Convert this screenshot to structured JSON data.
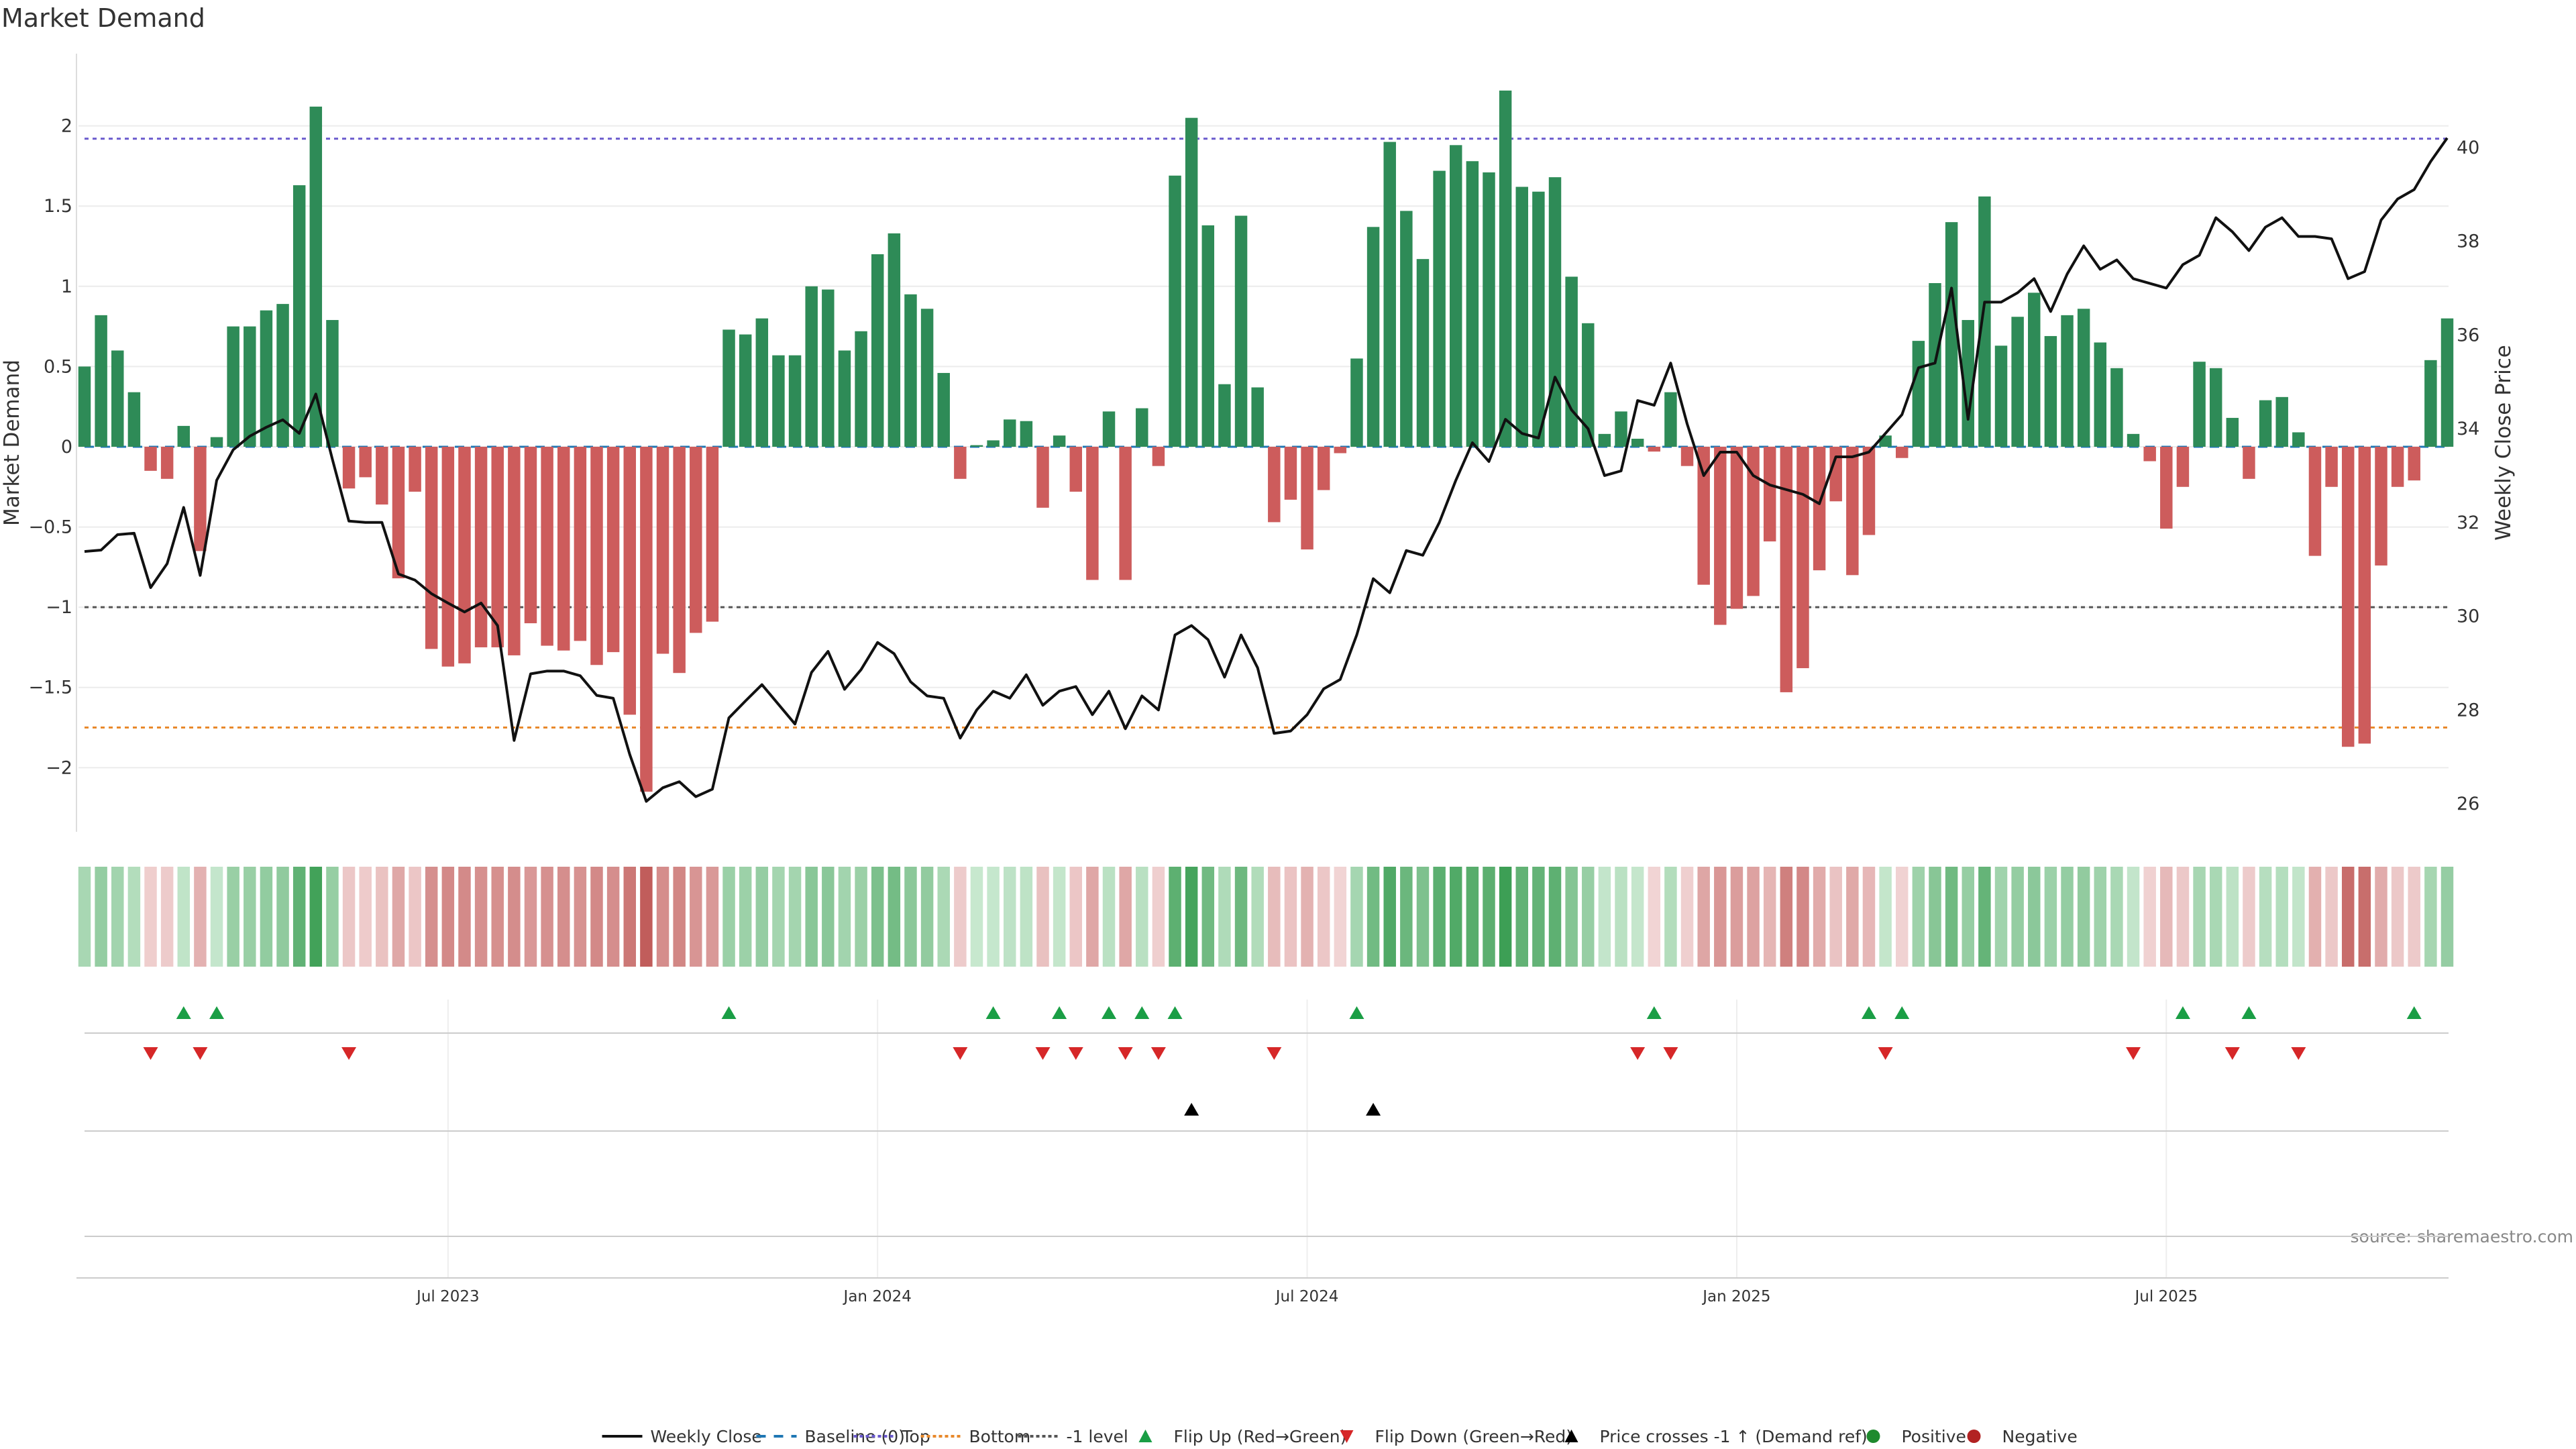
{
  "chart_data": {
    "type": "bar",
    "title": "Market Demand",
    "ylabel": "Market Demand",
    "y2label": "Weekly Close Price",
    "ylim": [
      -2.4,
      2.45
    ],
    "y2lim": [
      25.4,
      42.0
    ],
    "yticks": [
      2,
      1.5,
      1,
      0.5,
      0,
      -0.5,
      -1,
      -1.5,
      -2
    ],
    "ytick_labels": [
      "2",
      "1.5",
      "1",
      "0.5",
      "0",
      "−0.5",
      "−1",
      "−1.5",
      "−2"
    ],
    "y2ticks": [
      40,
      38,
      36,
      34,
      32,
      30,
      28,
      26
    ],
    "levels": {
      "top": 1.92,
      "bottom": -1.75,
      "minus_one": -1,
      "baseline": 0
    },
    "xticks": [
      {
        "week": 22,
        "label": "Jul 2023"
      },
      {
        "week": 48,
        "label": "Jan 2024"
      },
      {
        "week": 74,
        "label": "Jul 2024"
      },
      {
        "week": 100,
        "label": "Jan 2025"
      },
      {
        "week": 126,
        "label": "Jul 2025"
      }
    ],
    "demand": [
      0.5,
      0.82,
      0.6,
      0.34,
      -0.15,
      -0.2,
      0.13,
      -0.65,
      0.06,
      0.75,
      0.75,
      0.85,
      0.89,
      1.63,
      2.12,
      0.79,
      -0.26,
      -0.19,
      -0.36,
      -0.82,
      -0.28,
      -1.26,
      -1.37,
      -1.35,
      -1.25,
      -1.25,
      -1.3,
      -1.1,
      -1.24,
      -1.27,
      -1.21,
      -1.36,
      -1.28,
      -1.67,
      -2.15,
      -1.29,
      -1.41,
      -1.16,
      -1.09,
      0.73,
      0.7,
      0.8,
      0.57,
      0.57,
      1.0,
      0.98,
      0.6,
      0.72,
      1.2,
      1.33,
      0.95,
      0.86,
      0.46,
      -0.2,
      0.01,
      0.04,
      0.17,
      0.16,
      -0.38,
      0.07,
      -0.28,
      -0.83,
      0.22,
      -0.83,
      0.24,
      -0.12,
      1.69,
      2.05,
      1.38,
      0.39,
      1.44,
      0.37,
      -0.47,
      -0.33,
      -0.64,
      -0.27,
      -0.04,
      0.55,
      1.37,
      1.9,
      1.47,
      1.17,
      1.72,
      1.88,
      1.78,
      1.71,
      2.22,
      1.62,
      1.59,
      1.68,
      1.06,
      0.77,
      0.08,
      0.22,
      0.05,
      -0.03,
      0.34,
      -0.12,
      -0.86,
      -1.11,
      -1.01,
      -0.93,
      -0.59,
      -1.53,
      -1.38,
      -0.77,
      -0.34,
      -0.8,
      -0.55,
      0.07,
      -0.07,
      0.66,
      1.02,
      1.4,
      0.79,
      1.56,
      0.63,
      0.81,
      0.96,
      0.69,
      0.82,
      0.86,
      0.65,
      0.49,
      0.08,
      -0.09,
      -0.51,
      -0.25,
      0.53,
      0.49,
      0.18,
      -0.2,
      0.29,
      0.31,
      0.09,
      -0.68,
      -0.25,
      -1.87,
      -1.85,
      -0.74,
      -0.25,
      -0.21,
      0.54,
      0.8
    ],
    "close": [
      31.38,
      31.41,
      31.74,
      31.77,
      30.61,
      31.12,
      32.32,
      30.87,
      32.9,
      33.55,
      33.84,
      34.03,
      34.19,
      33.9,
      34.74,
      33.35,
      32.03,
      32.0,
      32.0,
      30.9,
      30.77,
      30.48,
      30.28,
      30.09,
      30.28,
      29.8,
      27.35,
      28.77,
      28.83,
      28.83,
      28.73,
      28.31,
      28.25,
      27.05,
      26.05,
      26.34,
      26.47,
      26.15,
      26.31,
      27.83,
      28.19,
      28.54,
      28.12,
      27.7,
      28.8,
      29.25,
      28.44,
      28.86,
      29.44,
      29.2,
      28.6,
      28.3,
      28.25,
      27.4,
      28.0,
      28.4,
      28.25,
      28.75,
      28.1,
      28.4,
      28.5,
      27.9,
      28.4,
      27.6,
      28.3,
      28.0,
      29.6,
      29.8,
      29.5,
      28.7,
      29.6,
      28.9,
      27.5,
      27.55,
      27.9,
      28.45,
      28.65,
      29.6,
      30.8,
      30.5,
      31.4,
      31.3,
      32.0,
      32.9,
      33.7,
      33.3,
      34.2,
      33.9,
      33.8,
      35.1,
      34.4,
      34.0,
      33.0,
      33.1,
      34.6,
      34.5,
      35.4,
      34.1,
      33.0,
      33.5,
      33.5,
      33.0,
      32.8,
      32.7,
      32.6,
      32.4,
      33.4,
      33.4,
      33.5,
      33.9,
      34.3,
      35.3,
      35.4,
      37.0,
      34.2,
      36.7,
      36.7,
      36.9,
      37.2,
      36.5,
      37.3,
      37.9,
      37.4,
      37.6,
      37.2,
      37.1,
      37.0,
      37.5,
      37.7,
      38.5,
      38.2,
      37.8,
      38.3,
      38.5,
      38.1,
      38.1,
      38.05,
      37.2,
      37.35,
      38.45,
      38.9,
      39.1,
      39.7,
      40.2
    ],
    "flip_up_weeks": [
      6,
      8,
      39,
      55,
      59,
      62,
      64,
      66,
      77,
      95,
      108,
      110,
      127,
      131,
      141
    ],
    "flip_down_weeks": [
      4,
      7,
      16,
      53,
      58,
      60,
      63,
      65,
      72,
      94,
      96,
      109,
      124,
      130,
      134
    ],
    "price_cross_weeks": [
      67,
      78
    ],
    "legend": [
      "Weekly Close",
      "Baseline (0)",
      "Top",
      "Bottom",
      "-1 level",
      "Flip Up (Red→Green)",
      "Flip Down (Green→Red)",
      "Price crosses -1 ↑ (Demand ref)",
      "Positive",
      "Negative"
    ],
    "colors": {
      "positive": "#2e8b57",
      "negative": "#cd5c5c",
      "top": "#6a5acd",
      "bottom": "#e8892b",
      "minus_one": "#555555",
      "baseline": "#1f77b4",
      "flip_up": "#1a9e45",
      "flip_down": "#d62728",
      "cross": "#000000",
      "legend_pos": "#1f8a2e",
      "legend_neg": "#b22222"
    }
  },
  "source": "source: sharemaestro.com"
}
